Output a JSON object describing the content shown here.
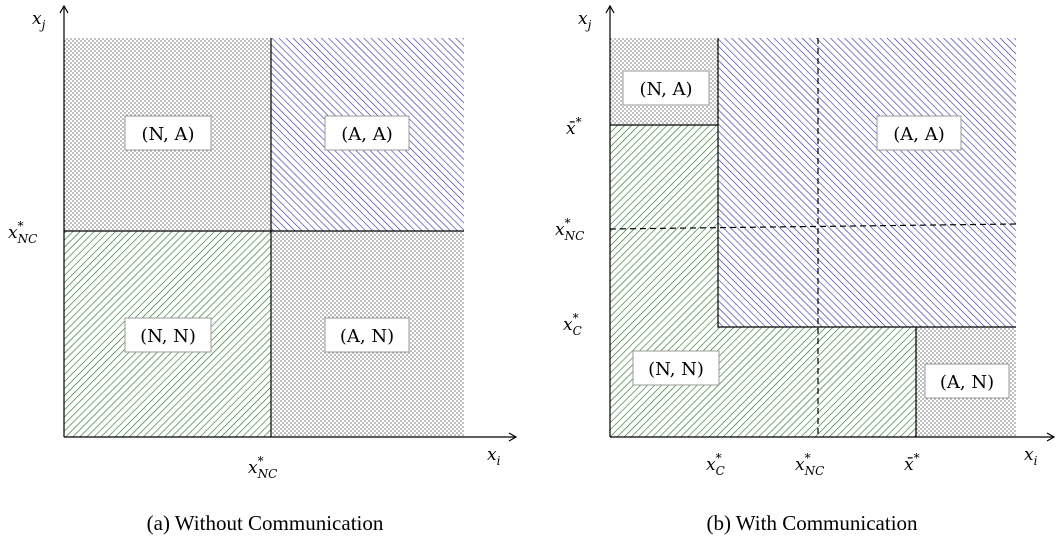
{
  "panel_a": {
    "caption": "(a) Without Communication",
    "x_axis": "x_i",
    "y_axis": "x_j",
    "x_tick": "x*_NC",
    "y_tick": "x*_NC",
    "regions": {
      "NA": "(N, A)",
      "AA": "(A, A)",
      "NN": "(N, N)",
      "AN": "(A, N)"
    }
  },
  "panel_b": {
    "caption": "(b) With Communication",
    "x_axis": "x_i",
    "y_axis": "x_j",
    "x_ticks": [
      "x*_C",
      "x*_NC",
      "x̄*"
    ],
    "y_ticks": [
      "x̄*",
      "x*_NC",
      "x*_C"
    ],
    "regions": {
      "NA": "(N, A)",
      "AA": "(A, A)",
      "NN": "(N, N)",
      "AN": "(A, N)"
    }
  },
  "colors": {
    "dots": "#8c8c8c",
    "green_hatch": "#1e6b1e",
    "blue_hatch": "#2a2aa0",
    "axis": "#000000"
  },
  "math": {
    "x": "x",
    "i": "i",
    "j": "j",
    "star": "*",
    "NC": "NC",
    "C": "C",
    "xbar": "x̄"
  }
}
